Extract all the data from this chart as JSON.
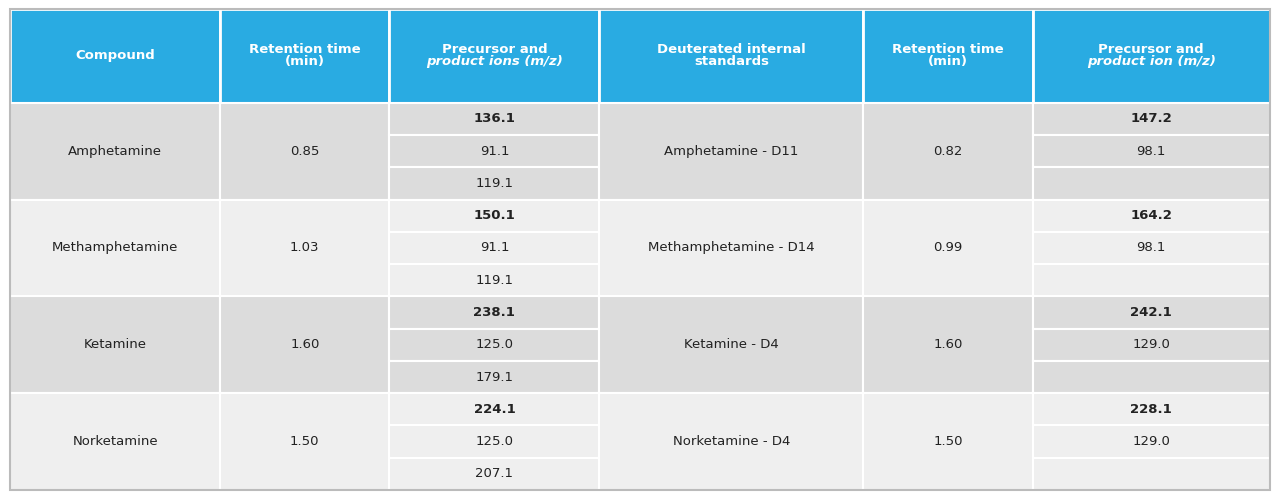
{
  "header_bg": "#29ABE2",
  "header_text_color": "#FFFFFF",
  "row_bg_a": "#DCDCDC",
  "row_bg_b": "#EFEFEF",
  "border_color": "#FFFFFF",
  "text_color": "#333333",
  "col_proportions": [
    1.55,
    1.25,
    1.55,
    1.95,
    1.25,
    1.75
  ],
  "headers": [
    [
      "Compound"
    ],
    [
      "Retention time",
      "(min)"
    ],
    [
      "Precursor and",
      "product ions (m/z)"
    ],
    [
      "Deuterated internal",
      "standards"
    ],
    [
      "Retention time",
      "(min)"
    ],
    [
      "Precursor and",
      "product ion (m/z)"
    ]
  ],
  "headers_italic_line": [
    false,
    false,
    true,
    false,
    false,
    true
  ],
  "rows": [
    {
      "compound": "Amphetamine",
      "rt": "0.85",
      "ions": [
        "136.1",
        "91.1",
        "119.1"
      ],
      "ions_bold": [
        true,
        false,
        false
      ],
      "istd": "Amphetamine - D11",
      "istd_rt": "0.82",
      "istd_ions": [
        "147.2",
        "98.1",
        ""
      ],
      "istd_ions_bold": [
        true,
        false,
        false
      ]
    },
    {
      "compound": "Methamphetamine",
      "rt": "1.03",
      "ions": [
        "150.1",
        "91.1",
        "119.1"
      ],
      "ions_bold": [
        true,
        false,
        false
      ],
      "istd": "Methamphetamine - D14",
      "istd_rt": "0.99",
      "istd_ions": [
        "164.2",
        "98.1",
        ""
      ],
      "istd_ions_bold": [
        true,
        false,
        false
      ]
    },
    {
      "compound": "Ketamine",
      "rt": "1.60",
      "ions": [
        "238.1",
        "125.0",
        "179.1"
      ],
      "ions_bold": [
        true,
        false,
        false
      ],
      "istd": "Ketamine - D4",
      "istd_rt": "1.60",
      "istd_ions": [
        "242.1",
        "129.0",
        ""
      ],
      "istd_ions_bold": [
        true,
        false,
        false
      ]
    },
    {
      "compound": "Norketamine",
      "rt": "1.50",
      "ions": [
        "224.1",
        "125.0",
        "207.1"
      ],
      "ions_bold": [
        true,
        false,
        false
      ],
      "istd": "Norketamine - D4",
      "istd_rt": "1.50",
      "istd_ions": [
        "228.1",
        "129.0",
        ""
      ],
      "istd_ions_bold": [
        true,
        false,
        false
      ]
    }
  ]
}
